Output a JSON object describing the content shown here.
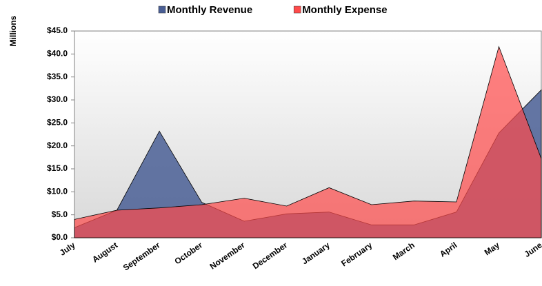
{
  "chart_data": {
    "type": "area",
    "y_label": "Millions",
    "categories": [
      "July",
      "August",
      "September",
      "October",
      "November",
      "December",
      "January",
      "February",
      "March",
      "April",
      "May",
      "June"
    ],
    "series": [
      {
        "name": "Monthly Revenue",
        "color": "#4a5f95",
        "values": [
          2.2,
          6.0,
          23.2,
          7.7,
          3.6,
          5.2,
          5.6,
          2.8,
          2.8,
          5.6,
          22.8,
          32.2
        ]
      },
      {
        "name": "Monthly Expense",
        "color": "#ff4a4a",
        "values": [
          4.0,
          6.0,
          6.5,
          7.2,
          8.6,
          6.9,
          10.9,
          7.2,
          8.0,
          7.8,
          41.6,
          17.2
        ]
      }
    ],
    "ylim": [
      0,
      45
    ],
    "yticks": [
      {
        "value": 0,
        "label": "$0.0"
      },
      {
        "value": 5,
        "label": "$5.0"
      },
      {
        "value": 10,
        "label": "$10.0"
      },
      {
        "value": 15,
        "label": "$15.0"
      },
      {
        "value": 20,
        "label": "$20.0"
      },
      {
        "value": 25,
        "label": "$25.0"
      },
      {
        "value": 30,
        "label": "$30.0"
      },
      {
        "value": 35,
        "label": "$35.0"
      },
      {
        "value": 40,
        "label": "$40.0"
      },
      {
        "value": 45,
        "label": "$45.0"
      }
    ],
    "legend": "top"
  }
}
